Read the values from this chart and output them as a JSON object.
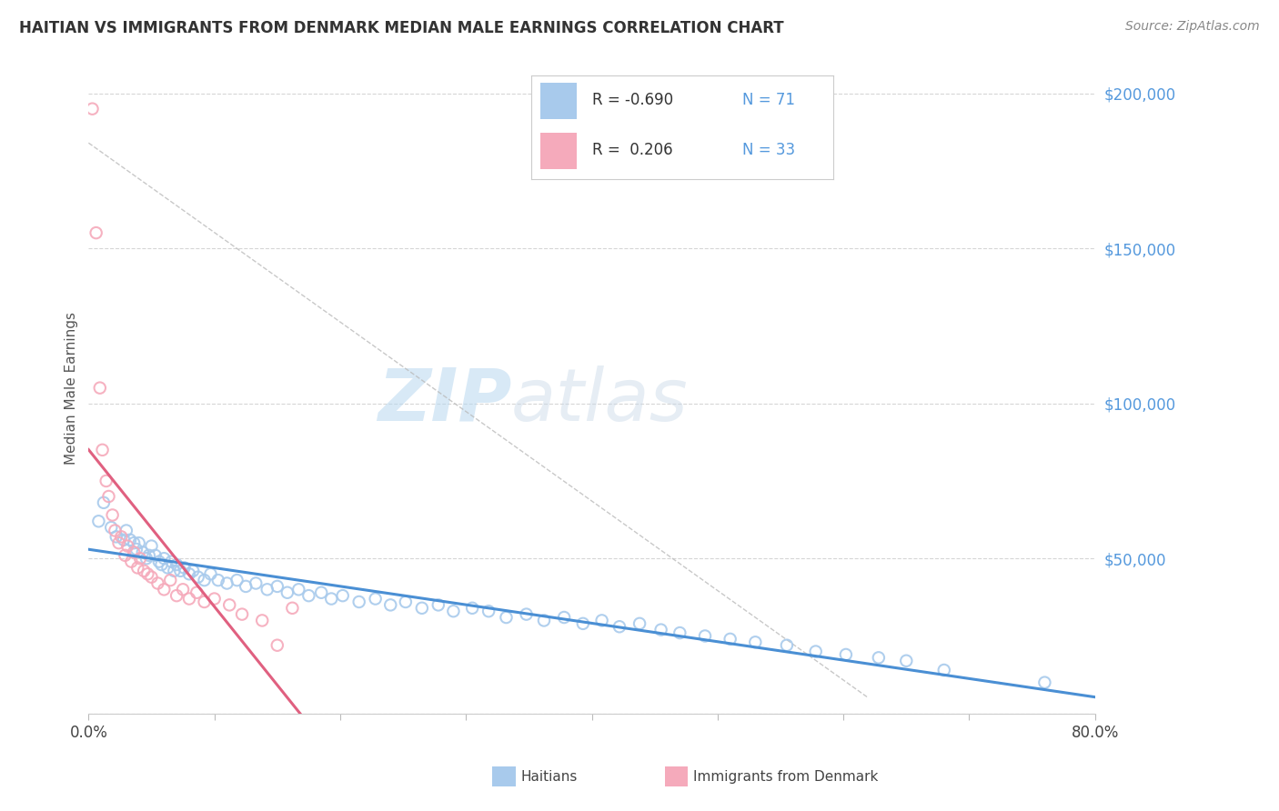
{
  "title": "HAITIAN VS IMMIGRANTS FROM DENMARK MEDIAN MALE EARNINGS CORRELATION CHART",
  "source": "Source: ZipAtlas.com",
  "ylabel": "Median Male Earnings",
  "watermark_zip": "ZIP",
  "watermark_atlas": "atlas",
  "x_min": 0.0,
  "x_max": 0.8,
  "y_min": 0,
  "y_max": 210000,
  "y_ticks": [
    0,
    50000,
    100000,
    150000,
    200000
  ],
  "y_tick_labels": [
    "",
    "$50,000",
    "$100,000",
    "$150,000",
    "$200,000"
  ],
  "blue_color": "#A8CAEC",
  "pink_color": "#F5AABB",
  "blue_line_color": "#4A8FD4",
  "pink_line_color": "#E06080",
  "diag_line_color": "#BBBBBB",
  "tick_color": "#5599DD",
  "legend_blue_r": "-0.690",
  "legend_blue_n": "71",
  "legend_pink_r": "0.206",
  "legend_pink_n": "33",
  "legend_label_blue": "Haitians",
  "legend_label_pink": "Immigrants from Denmark",
  "blue_scatter_x": [
    0.008,
    0.012,
    0.018,
    0.022,
    0.028,
    0.03,
    0.033,
    0.036,
    0.038,
    0.04,
    0.043,
    0.046,
    0.048,
    0.05,
    0.053,
    0.056,
    0.058,
    0.06,
    0.063,
    0.066,
    0.068,
    0.07,
    0.073,
    0.076,
    0.08,
    0.083,
    0.087,
    0.092,
    0.097,
    0.103,
    0.11,
    0.118,
    0.125,
    0.133,
    0.142,
    0.15,
    0.158,
    0.167,
    0.175,
    0.185,
    0.193,
    0.202,
    0.215,
    0.228,
    0.24,
    0.252,
    0.265,
    0.278,
    0.29,
    0.305,
    0.318,
    0.332,
    0.348,
    0.362,
    0.378,
    0.393,
    0.408,
    0.422,
    0.438,
    0.455,
    0.47,
    0.49,
    0.51,
    0.53,
    0.555,
    0.578,
    0.602,
    0.628,
    0.65,
    0.68,
    0.76
  ],
  "blue_scatter_y": [
    62000,
    68000,
    60000,
    57000,
    56000,
    59000,
    56000,
    55000,
    53000,
    55000,
    52000,
    50000,
    51000,
    54000,
    51000,
    49000,
    48000,
    50000,
    47000,
    49000,
    46000,
    48000,
    46000,
    47000,
    45000,
    46000,
    44000,
    43000,
    45000,
    43000,
    42000,
    43000,
    41000,
    42000,
    40000,
    41000,
    39000,
    40000,
    38000,
    39000,
    37000,
    38000,
    36000,
    37000,
    35000,
    36000,
    34000,
    35000,
    33000,
    34000,
    33000,
    31000,
    32000,
    30000,
    31000,
    29000,
    30000,
    28000,
    29000,
    27000,
    26000,
    25000,
    24000,
    23000,
    22000,
    20000,
    19000,
    18000,
    17000,
    14000,
    10000
  ],
  "pink_scatter_x": [
    0.003,
    0.006,
    0.009,
    0.011,
    0.014,
    0.016,
    0.019,
    0.021,
    0.024,
    0.026,
    0.029,
    0.031,
    0.034,
    0.036,
    0.039,
    0.041,
    0.044,
    0.047,
    0.05,
    0.055,
    0.06,
    0.065,
    0.07,
    0.075,
    0.08,
    0.086,
    0.092,
    0.1,
    0.112,
    0.122,
    0.138,
    0.15,
    0.162
  ],
  "pink_scatter_y": [
    195000,
    155000,
    105000,
    85000,
    75000,
    70000,
    64000,
    59000,
    55000,
    57000,
    51000,
    54000,
    49000,
    52000,
    47000,
    50000,
    46000,
    45000,
    44000,
    42000,
    40000,
    43000,
    38000,
    40000,
    37000,
    39000,
    36000,
    37000,
    35000,
    32000,
    30000,
    22000,
    34000
  ]
}
